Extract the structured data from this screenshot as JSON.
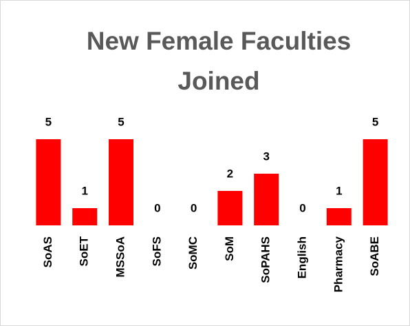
{
  "chart_data": {
    "type": "bar",
    "title": "New Female Faculties Joined",
    "categories": [
      "SoAS",
      "SoET",
      "MSSoA",
      "SoFS",
      "SoMC",
      "SoM",
      "SoPAHS",
      "English",
      "Pharmacy",
      "SoABE"
    ],
    "values": [
      5,
      1,
      5,
      0,
      0,
      2,
      3,
      0,
      1,
      5
    ],
    "color": "#ff0000"
  }
}
